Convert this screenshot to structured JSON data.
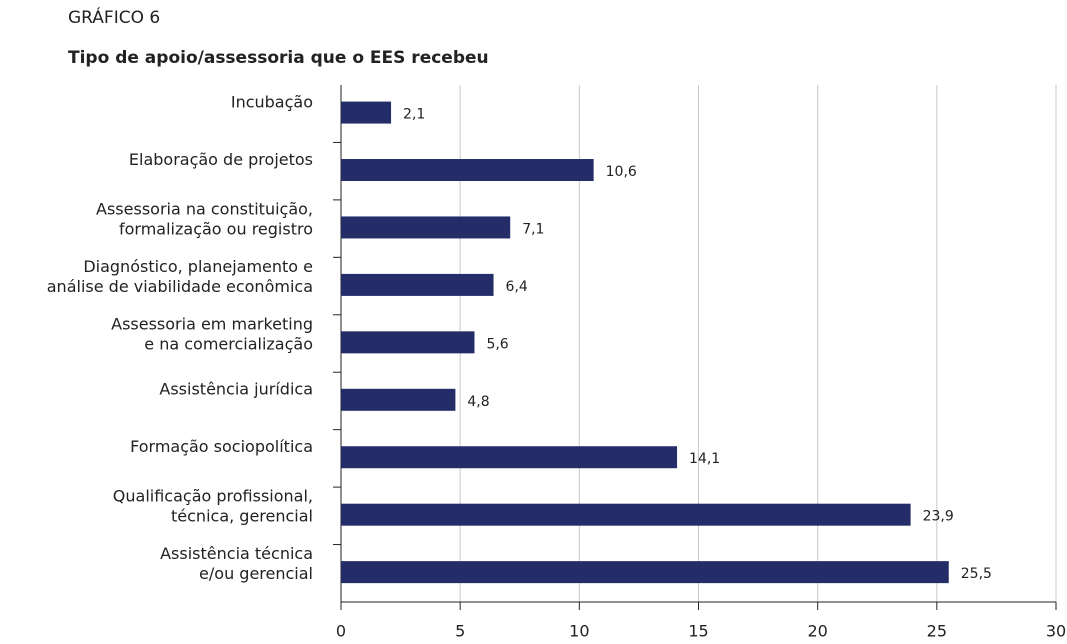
{
  "chart_data": {
    "type": "barh",
    "kicker": "GRÁFICO 6",
    "title": "Tipo de apoio/assessoria que o EES recebeu",
    "categories": [
      [
        "Incubação"
      ],
      [
        "Elaboração de projetos"
      ],
      [
        "Assessoria na constituição,",
        "formalização ou registro"
      ],
      [
        "Diagnóstico, planejamento e",
        "análise de viabilidade econômica"
      ],
      [
        "Assessoria em marketing",
        "e na comercialização"
      ],
      [
        "Assistência jurídica"
      ],
      [
        "Formação sociopolítica"
      ],
      [
        "Qualificação profissional,",
        "técnica, gerencial"
      ],
      [
        "Assistência técnica",
        "e/ou gerencial"
      ]
    ],
    "values": [
      2.1,
      10.6,
      7.1,
      6.4,
      5.6,
      4.8,
      14.1,
      23.9,
      25.5
    ],
    "value_labels": [
      "2,1",
      "10,6",
      "7,1",
      "6,4",
      "5,6",
      "4,8",
      "14,1",
      "23,9",
      "25,5"
    ],
    "color": "#252d69",
    "xlim": [
      0,
      30
    ],
    "xticks": [
      0,
      5,
      10,
      15,
      20,
      25,
      30
    ],
    "grid": true
  }
}
